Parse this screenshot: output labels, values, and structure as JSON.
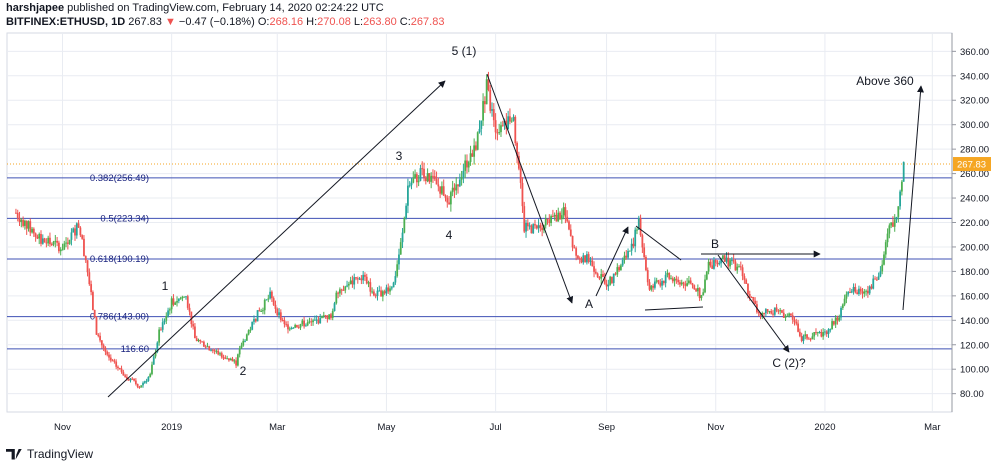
{
  "header": {
    "author": "harshjapee",
    "published": "published on TradingView.com, February 14, 2020 02:24:22 UTC",
    "symbol": "BITFINEX:ETHUSD, 1D",
    "last": "267.83",
    "change_arrow": "▼",
    "change": "−0.47 (−0.18%)",
    "o_label": "O:",
    "o": "268.16",
    "h_label": "H:",
    "h": "270.08",
    "l_label": "L:",
    "l": "263.80",
    "c_label": "C:",
    "c": "267.83"
  },
  "brand": {
    "name": "TradingView",
    "icon": "tradingview-logo-icon"
  },
  "colors": {
    "up": "#26a69a",
    "up_bright": "#4caf50",
    "down": "#ef5350",
    "fib_line": "#3f51b5",
    "fib_text": "#1a237e",
    "last_price_bg": "#f5a623",
    "grid": "#e9ecf2",
    "annotation": "#131722"
  },
  "chart_data": {
    "type": "candlestick",
    "title": "",
    "xlabel": "",
    "ylabel": "",
    "x_ticks": [
      "Nov",
      "2019",
      "Mar",
      "May",
      "Jul",
      "Sep",
      "Nov",
      "2020",
      "Mar"
    ],
    "y_ticks": [
      80,
      100,
      120,
      140,
      160,
      180,
      200,
      220,
      240,
      260,
      280,
      300,
      320,
      340,
      360
    ],
    "ylim": [
      65,
      375
    ],
    "last_price": 267.83,
    "last_price_label": "267.83",
    "fib_levels": [
      {
        "label": "0.382(256.49)",
        "value": 256.49
      },
      {
        "label": "0.5(223.34)",
        "value": 223.34
      },
      {
        "label": "0.618(190.19)",
        "value": 190.19
      },
      {
        "label": "0.786(143.00)",
        "value": 143.0
      },
      {
        "label": "116.60",
        "value": 116.6
      }
    ],
    "wave_labels": [
      "1",
      "2",
      "3",
      "4",
      "5 (1)",
      "A",
      "B",
      "C (2)?",
      "Above 360"
    ],
    "price_path": [
      [
        "2018-10-06",
        228
      ],
      [
        "2018-10-20",
        205
      ],
      [
        "2018-11-01",
        200
      ],
      [
        "2018-11-10",
        218
      ],
      [
        "2018-11-14",
        190
      ],
      [
        "2018-11-20",
        130
      ],
      [
        "2018-11-26",
        110
      ],
      [
        "2018-12-06",
        95
      ],
      [
        "2018-12-14",
        86
      ],
      [
        "2018-12-20",
        95
      ],
      [
        "2018-12-25",
        130
      ],
      [
        "2019-01-01",
        155
      ],
      [
        "2019-01-09",
        160
      ],
      [
        "2019-01-14",
        125
      ],
      [
        "2019-01-25",
        115
      ],
      [
        "2019-02-06",
        105
      ],
      [
        "2019-02-09",
        120
      ],
      [
        "2019-02-18",
        145
      ],
      [
        "2019-02-25",
        160
      ],
      [
        "2019-03-05",
        135
      ],
      [
        "2019-03-20",
        138
      ],
      [
        "2019-04-01",
        145
      ],
      [
        "2019-04-03",
        165
      ],
      [
        "2019-04-18",
        175
      ],
      [
        "2019-04-25",
        160
      ],
      [
        "2019-05-05",
        170
      ],
      [
        "2019-05-10",
        210
      ],
      [
        "2019-05-13",
        250
      ],
      [
        "2019-05-20",
        260
      ],
      [
        "2019-05-30",
        250
      ],
      [
        "2019-06-05",
        240
      ],
      [
        "2019-06-10",
        255
      ],
      [
        "2019-06-20",
        285
      ],
      [
        "2019-06-26",
        330
      ],
      [
        "2019-06-30",
        300
      ],
      [
        "2019-07-05",
        295
      ],
      [
        "2019-07-10",
        310
      ],
      [
        "2019-07-13",
        280
      ],
      [
        "2019-07-17",
        215
      ],
      [
        "2019-07-25",
        215
      ],
      [
        "2019-08-05",
        225
      ],
      [
        "2019-08-08",
        230
      ],
      [
        "2019-08-15",
        190
      ],
      [
        "2019-08-22",
        190
      ],
      [
        "2019-08-31",
        170
      ],
      [
        "2019-09-05",
        175
      ],
      [
        "2019-09-15",
        200
      ],
      [
        "2019-09-19",
        220
      ],
      [
        "2019-09-25",
        165
      ],
      [
        "2019-10-05",
        175
      ],
      [
        "2019-10-18",
        170
      ],
      [
        "2019-10-24",
        160
      ],
      [
        "2019-10-28",
        185
      ],
      [
        "2019-11-06",
        190
      ],
      [
        "2019-11-15",
        180
      ],
      [
        "2019-11-20",
        160
      ],
      [
        "2019-11-25",
        145
      ],
      [
        "2019-12-05",
        148
      ],
      [
        "2019-12-15",
        140
      ],
      [
        "2019-12-18",
        125
      ],
      [
        "2020-01-01",
        130
      ],
      [
        "2020-01-08",
        142
      ],
      [
        "2020-01-15",
        165
      ],
      [
        "2020-01-25",
        165
      ],
      [
        "2020-02-01",
        180
      ],
      [
        "2020-02-06",
        215
      ],
      [
        "2020-02-10",
        225
      ],
      [
        "2020-02-14",
        268
      ]
    ]
  }
}
